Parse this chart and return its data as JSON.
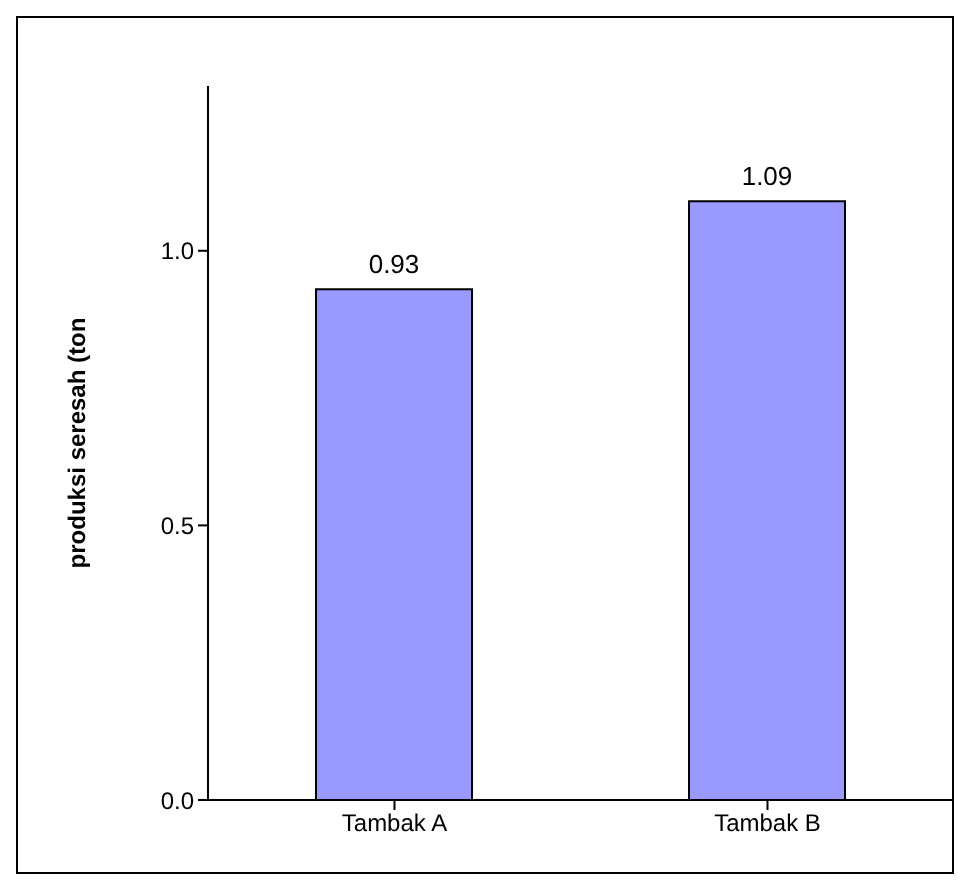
{
  "chart_data": {
    "type": "bar",
    "ylabel": "produksi seresah (ton",
    "categories": [
      "Tambak A",
      "Tambak B"
    ],
    "values": [
      0.93,
      1.09
    ],
    "color": "#9999ff",
    "data_labels": true,
    "ylim": [
      0,
      1.3
    ],
    "yticks": [
      {
        "value": 0,
        "label": "0.0"
      },
      {
        "value": 0.5,
        "label": "0.5"
      },
      {
        "value": 1,
        "label": "1.0"
      }
    ],
    "grid": false,
    "legend": false
  }
}
